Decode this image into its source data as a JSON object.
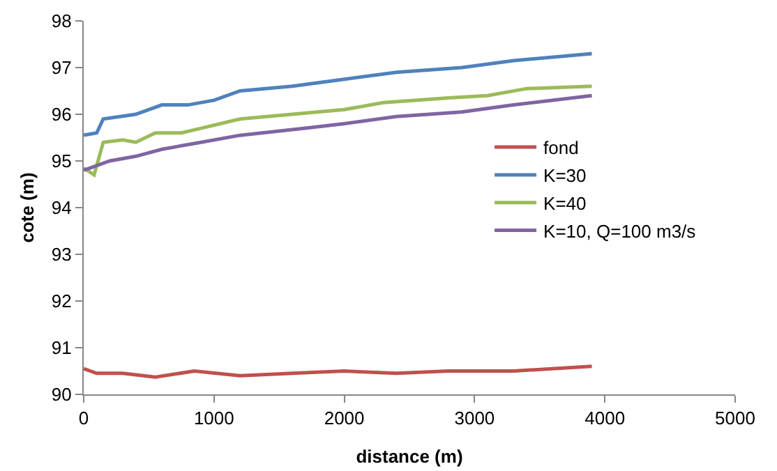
{
  "chart_data": {
    "type": "line",
    "xlabel": "distance (m)",
    "ylabel": "cote (m)",
    "xlim": [
      0,
      5000
    ],
    "xticks": [
      0,
      1000,
      2000,
      3000,
      4000,
      5000
    ],
    "ylim": [
      90,
      98
    ],
    "yticks": [
      90,
      91,
      92,
      93,
      94,
      95,
      96,
      97,
      98
    ],
    "grid": false,
    "legend": "right",
    "marker": "none",
    "line_style": "solid",
    "series": [
      {
        "name": "fond",
        "color": "#c0504d",
        "x": [
          0,
          100,
          300,
          550,
          850,
          1200,
          1600,
          2000,
          2400,
          2800,
          3300,
          3900
        ],
        "values": [
          90.55,
          90.45,
          90.45,
          90.37,
          90.5,
          90.4,
          90.45,
          90.5,
          90.45,
          90.5,
          90.5,
          90.6
        ]
      },
      {
        "name": "K=30",
        "color": "#4f81bd",
        "x": [
          0,
          100,
          150,
          400,
          600,
          800,
          1000,
          1200,
          1600,
          2000,
          2400,
          2900,
          3300,
          3900
        ],
        "values": [
          95.55,
          95.6,
          95.9,
          96.0,
          96.2,
          96.2,
          96.3,
          96.5,
          96.6,
          96.75,
          96.9,
          97.0,
          97.15,
          97.3
        ]
      },
      {
        "name": "K=40",
        "color": "#9bbb59",
        "x": [
          0,
          80,
          150,
          300,
          400,
          550,
          750,
          900,
          1200,
          1600,
          2000,
          2300,
          2800,
          3100,
          3400,
          3900
        ],
        "values": [
          94.85,
          94.7,
          95.4,
          95.45,
          95.4,
          95.6,
          95.6,
          95.7,
          95.9,
          96.0,
          96.1,
          96.25,
          96.35,
          96.4,
          96.55,
          96.6
        ]
      },
      {
        "name": "K=10, Q=100 m3/s",
        "color": "#8064a2",
        "x": [
          0,
          200,
          400,
          600,
          900,
          1200,
          1700,
          2000,
          2400,
          2900,
          3300,
          3900
        ],
        "values": [
          94.8,
          95.0,
          95.1,
          95.25,
          95.4,
          95.55,
          95.7,
          95.8,
          95.95,
          96.05,
          96.2,
          96.4
        ]
      }
    ]
  }
}
